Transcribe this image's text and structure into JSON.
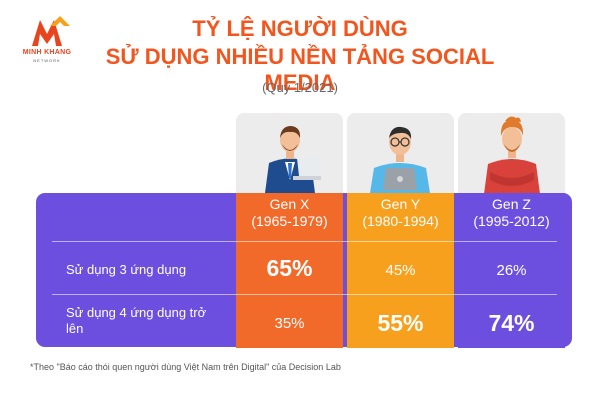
{
  "brand": {
    "name": "MINH KHANG",
    "tagline": "NETWORK",
    "accent": "#f2551d"
  },
  "title_line1": "TỶ LỆ NGƯỜI DÙNG",
  "title_line2": "SỬ DỤNG NHIỀU NỀN TẢNG SOCIAL MEDIA",
  "subtitle": "(Quý 1/2021)",
  "colors": {
    "gen_x": "#f26a2a",
    "gen_y": "#f7a01e",
    "gen_z": "#6d4fdf",
    "band": "#6d4fdf"
  },
  "chart_data": {
    "type": "table",
    "title": "TỶ LỆ NGƯỜI DÙNG SỬ DỤNG NHIỀU NỀN TẢNG SOCIAL MEDIA",
    "subtitle": "(Quý 1/2021)",
    "columns": [
      {
        "name": "Gen X",
        "years": "(1965-1979)",
        "icon": "businessman-with-laptop-icon"
      },
      {
        "name": "Gen Y",
        "years": "(1980-1994)",
        "icon": "man-with-laptop-icon"
      },
      {
        "name": "Gen Z",
        "years": "(1995-2012)",
        "icon": "young-man-crossed-arms-icon"
      }
    ],
    "rows": [
      {
        "label": "Sử dụng 3 ứng dụng",
        "values": [
          "65%",
          "45%",
          "26%"
        ]
      },
      {
        "label": "Sử dụng 4 ứng dụng trở lên",
        "values": [
          "35%",
          "55%",
          "74%"
        ]
      }
    ],
    "values_numeric": [
      [
        65,
        45,
        26
      ],
      [
        35,
        55,
        74
      ]
    ]
  },
  "footnote": "*Theo \"Báo cáo thói quen người dùng Việt Nam trên Digital\" của Decision Lab"
}
